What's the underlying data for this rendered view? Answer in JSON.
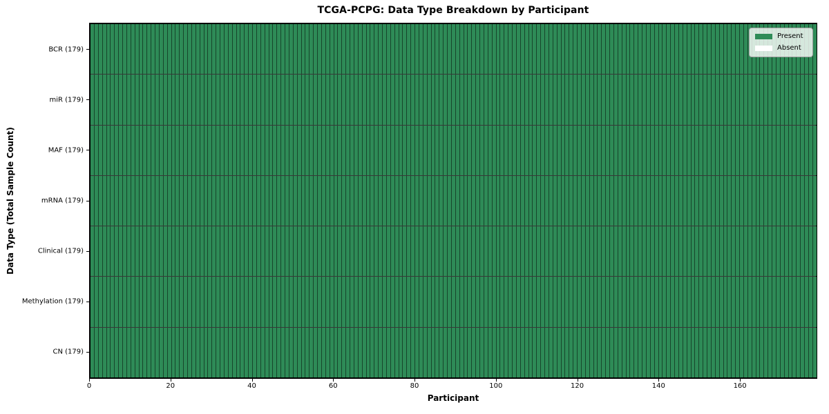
{
  "chart_data": {
    "type": "heatmap",
    "title": "TCGA-PCPG: Data Type Breakdown by Participant",
    "xlabel": "Participant",
    "ylabel": "Data Type (Total Sample Count)",
    "participants": 179,
    "x_range": [
      0,
      179
    ],
    "x_ticks": [
      0,
      20,
      40,
      60,
      80,
      100,
      120,
      140,
      160
    ],
    "rows": [
      {
        "data_type": "BCR",
        "label": "BCR (179)",
        "total": 179,
        "present": 179,
        "absent": 0
      },
      {
        "data_type": "miR",
        "label": "miR (179)",
        "total": 179,
        "present": 179,
        "absent": 0
      },
      {
        "data_type": "MAF",
        "label": "MAF (179)",
        "total": 179,
        "present": 179,
        "absent": 0
      },
      {
        "data_type": "mRNA",
        "label": "mRNA (179)",
        "total": 179,
        "present": 179,
        "absent": 0
      },
      {
        "data_type": "Clinical",
        "label": "Clinical (179)",
        "total": 179,
        "present": 179,
        "absent": 0
      },
      {
        "data_type": "Methylation",
        "label": "Methylation (179)",
        "total": 179,
        "present": 179,
        "absent": 0
      },
      {
        "data_type": "CN",
        "label": "CN (179)",
        "total": 179,
        "present": 179,
        "absent": 0
      }
    ],
    "legend": [
      {
        "key": "present",
        "label": "Present",
        "color": "#2e8b57"
      },
      {
        "key": "absent",
        "label": "Absent",
        "color": "#ffffff"
      }
    ],
    "colors": {
      "present": "#2e8b57",
      "absent": "#ffffff",
      "cell_edge": "#1d3527",
      "row_line": "#121f18",
      "spine": "#000000",
      "legend_background": "#eef3ec"
    },
    "grid": true,
    "legend_position": "upper right"
  }
}
